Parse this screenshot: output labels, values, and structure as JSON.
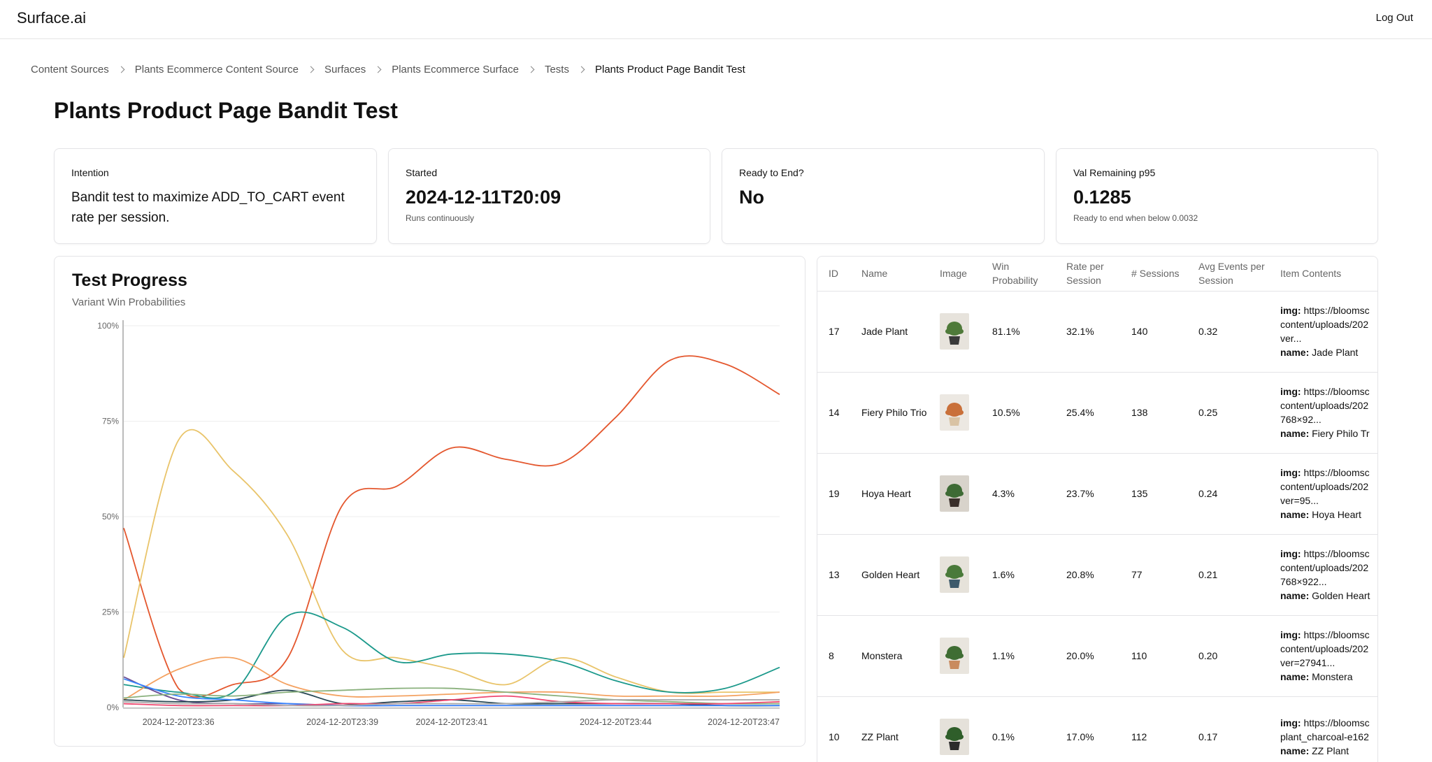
{
  "header": {
    "brand": "Surface.ai",
    "logout_label": "Log Out"
  },
  "breadcrumb": [
    "Content Sources",
    "Plants Ecommerce Content Source",
    "Surfaces",
    "Plants Ecommerce Surface",
    "Tests",
    "Plants Product Page Bandit Test"
  ],
  "page_title": "Plants Product Page Bandit Test",
  "cards": {
    "intention": {
      "label": "Intention",
      "text": "Bandit test to maximize ADD_TO_CART event rate per session."
    },
    "started": {
      "label": "Started",
      "value": "2024-12-11T20:09",
      "sub": "Runs continuously"
    },
    "ready": {
      "label": "Ready to End?",
      "value": "No"
    },
    "val_remaining": {
      "label": "Val Remaining p95",
      "value": "0.1285",
      "sub": "Ready to end when below 0.0032"
    }
  },
  "chart_data": {
    "type": "line",
    "title": "Test Progress",
    "subtitle": "Variant Win Probabilities",
    "x": [
      "2024-12-20T23:35",
      "2024-12-20T23:36",
      "2024-12-20T23:37",
      "2024-12-20T23:38",
      "2024-12-20T23:39",
      "2024-12-20T23:40",
      "2024-12-20T23:41",
      "2024-12-20T23:42",
      "2024-12-20T23:43",
      "2024-12-20T23:44",
      "2024-12-20T23:45",
      "2024-12-20T23:46",
      "2024-12-20T23:47"
    ],
    "x_tick_labels": [
      "2024-12-20T23:36",
      "2024-12-20T23:39",
      "2024-12-20T23:41",
      "2024-12-20T23:44",
      "2024-12-20T23:47"
    ],
    "y_tick_labels": [
      "100%",
      "75%",
      "50%",
      "25%",
      "0%"
    ],
    "ylim": [
      0,
      1
    ],
    "grid": true,
    "series": [
      {
        "color": "#e4572e",
        "values": [
          0.47,
          0.05,
          0.06,
          0.13,
          0.53,
          0.58,
          0.68,
          0.65,
          0.64,
          0.76,
          0.91,
          0.9,
          0.82
        ]
      },
      {
        "color": "#e9c46a",
        "values": [
          0.13,
          0.7,
          0.62,
          0.45,
          0.15,
          0.13,
          0.1,
          0.06,
          0.13,
          0.08,
          0.04,
          0.04,
          0.04
        ]
      },
      {
        "color": "#1b998b",
        "values": [
          0.06,
          0.04,
          0.04,
          0.24,
          0.21,
          0.12,
          0.14,
          0.14,
          0.12,
          0.07,
          0.04,
          0.05,
          0.105
        ]
      },
      {
        "color": "#f4a261",
        "values": [
          0.02,
          0.1,
          0.13,
          0.06,
          0.03,
          0.03,
          0.035,
          0.04,
          0.04,
          0.03,
          0.03,
          0.03,
          0.04
        ]
      },
      {
        "color": "#6a4c93",
        "values": [
          0.08,
          0.02,
          0.01,
          0.01,
          0.005,
          0.005,
          0.005,
          0.005,
          0.005,
          0.005,
          0.005,
          0.005,
          0.005
        ]
      },
      {
        "color": "#264653",
        "values": [
          0.02,
          0.015,
          0.02,
          0.045,
          0.01,
          0.015,
          0.02,
          0.01,
          0.01,
          0.01,
          0.01,
          0.005,
          0.005
        ]
      },
      {
        "color": "#3a86ff",
        "values": [
          0.075,
          0.03,
          0.02,
          0.01,
          0.005,
          0.005,
          0.005,
          0.005,
          0.005,
          0.005,
          0.005,
          0.005,
          0.005
        ]
      },
      {
        "color": "#8ab17d",
        "values": [
          0.025,
          0.035,
          0.03,
          0.04,
          0.045,
          0.05,
          0.05,
          0.04,
          0.03,
          0.02,
          0.015,
          0.01,
          0.01
        ]
      },
      {
        "color": "#ef476f",
        "values": [
          0.01,
          0.005,
          0.005,
          0.005,
          0.01,
          0.01,
          0.02,
          0.03,
          0.015,
          0.01,
          0.01,
          0.01,
          0.015
        ]
      },
      {
        "color": "#aaaaaa",
        "values": [
          0.015,
          0.01,
          0.01,
          0.005,
          0.005,
          0.01,
          0.01,
          0.01,
          0.015,
          0.02,
          0.02,
          0.02,
          0.02
        ]
      }
    ]
  },
  "table": {
    "columns": [
      "ID",
      "Name",
      "Image",
      "Win Probability",
      "Rate per Session",
      "# Sessions",
      "Avg Events per Session",
      "Item Contents"
    ],
    "rows": [
      {
        "id": "17",
        "name": "Jade Plant",
        "win": "81.1%",
        "rate": "32.1%",
        "sessions": "140",
        "avg": "0.32",
        "contents": [
          "https://bloomsc",
          "content/uploads/202",
          "ver..."
        ],
        "content_name": "Jade Plant",
        "image": {
          "pot": "#3a3a3a",
          "leaf": "#4f7a3a",
          "bg": "#e7e3dc"
        }
      },
      {
        "id": "14",
        "name": "Fiery Philo Trio",
        "win": "10.5%",
        "rate": "25.4%",
        "sessions": "138",
        "avg": "0.25",
        "contents": [
          "https://bloomsc",
          "content/uploads/202",
          "768×92..."
        ],
        "content_name": "Fiery Philo Tr",
        "image": {
          "pot": "#d9c3a4",
          "leaf": "#c9703a",
          "bg": "#ece8e2"
        }
      },
      {
        "id": "19",
        "name": "Hoya Heart",
        "win": "4.3%",
        "rate": "23.7%",
        "sessions": "135",
        "avg": "0.24",
        "contents": [
          "https://bloomsc",
          "content/uploads/202",
          "ver=95..."
        ],
        "content_name": "Hoya Heart",
        "image": {
          "pot": "#3a2f2a",
          "leaf": "#3e6b35",
          "bg": "#d8d3cb"
        }
      },
      {
        "id": "13",
        "name": "Golden Heart",
        "win": "1.6%",
        "rate": "20.8%",
        "sessions": "77",
        "avg": "0.21",
        "contents": [
          "https://bloomsc",
          "content/uploads/202",
          "768×922..."
        ],
        "content_name": "Golden Heart",
        "image": {
          "pot": "#3d5a6b",
          "leaf": "#4a7a3a",
          "bg": "#e6e2da"
        }
      },
      {
        "id": "8",
        "name": "Monstera",
        "win": "1.1%",
        "rate": "20.0%",
        "sessions": "110",
        "avg": "0.20",
        "contents": [
          "https://bloomsc",
          "content/uploads/202",
          "ver=27941..."
        ],
        "content_name": "Monstera",
        "image": {
          "pot": "#c98a5e",
          "leaf": "#3f6d33",
          "bg": "#e9e5de"
        }
      },
      {
        "id": "10",
        "name": "ZZ Plant",
        "win": "0.1%",
        "rate": "17.0%",
        "sessions": "112",
        "avg": "0.17",
        "contents": [
          "https://bloomsc",
          "plant_charcoal-e162"
        ],
        "content_name": "ZZ Plant",
        "image": {
          "pot": "#2c2c2c",
          "leaf": "#2f5e2a",
          "bg": "#e5e1da"
        }
      }
    ]
  }
}
